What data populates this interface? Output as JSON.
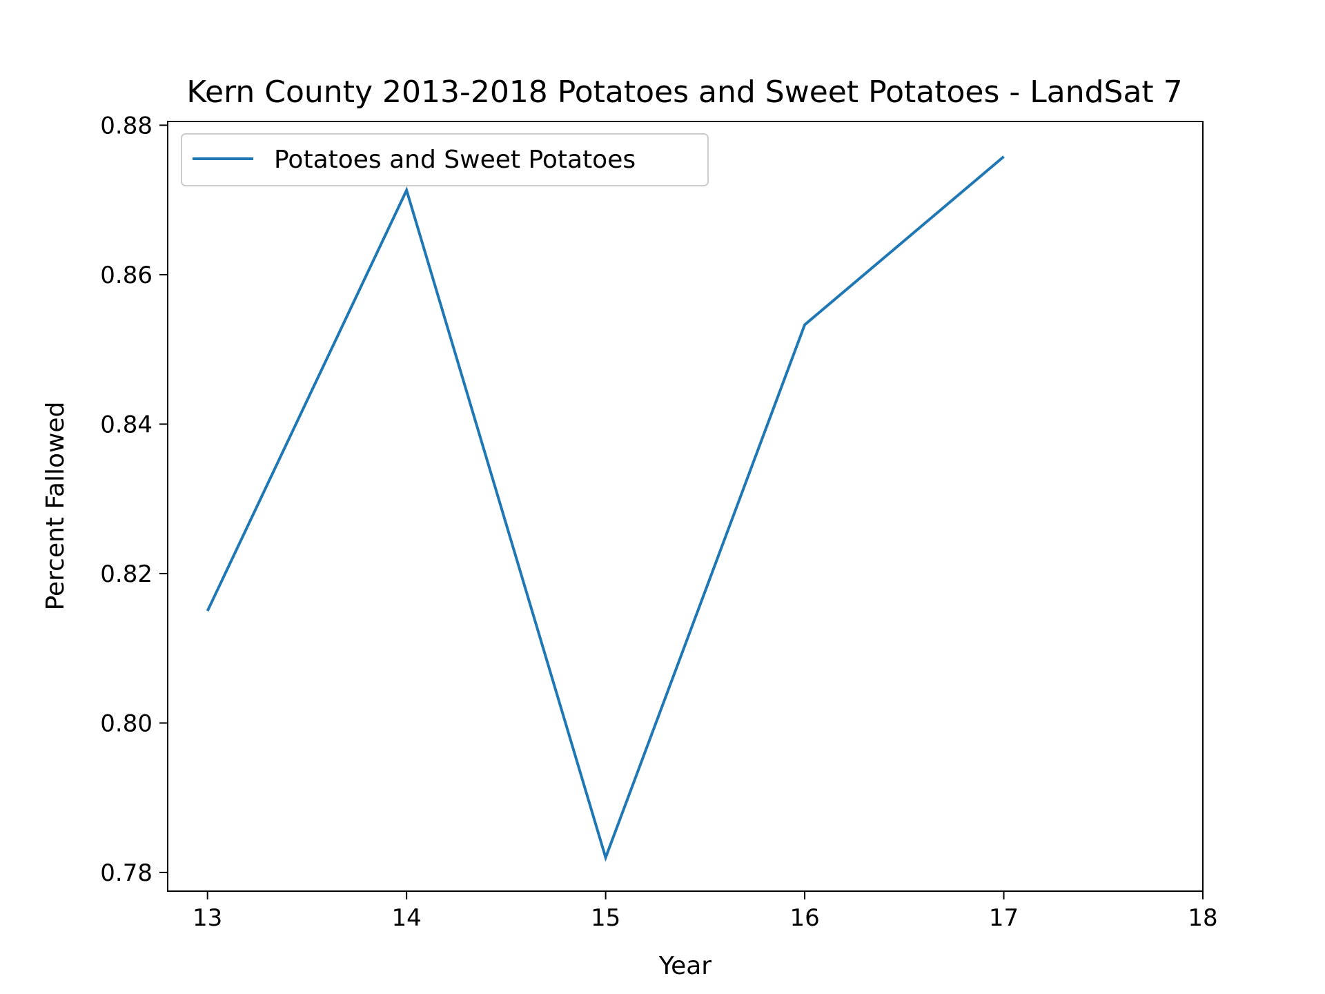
{
  "chart_data": {
    "type": "line",
    "title": "Kern County 2013-2018 Potatoes and Sweet Potatoes - LandSat 7",
    "xlabel": "Year",
    "ylabel": "Percent Fallowed",
    "xlim": [
      12.8,
      18
    ],
    "ylim": [
      0.7775,
      0.8805
    ],
    "xticks": [
      13,
      14,
      15,
      16,
      17,
      18
    ],
    "yticks": [
      0.78,
      0.8,
      0.82,
      0.84,
      0.86,
      0.88
    ],
    "xtick_labels": [
      "13",
      "14",
      "15",
      "16",
      "17",
      "18"
    ],
    "ytick_labels": [
      "0.78",
      "0.80",
      "0.82",
      "0.84",
      "0.86",
      "0.88"
    ],
    "legend_position": "upper-left",
    "grid": false,
    "series": [
      {
        "name": "Potatoes and Sweet Potatoes",
        "color": "#1f77b4",
        "x": [
          13,
          14,
          15,
          16,
          17
        ],
        "y": [
          0.815,
          0.8713,
          0.782,
          0.8533,
          0.8758
        ]
      }
    ]
  }
}
